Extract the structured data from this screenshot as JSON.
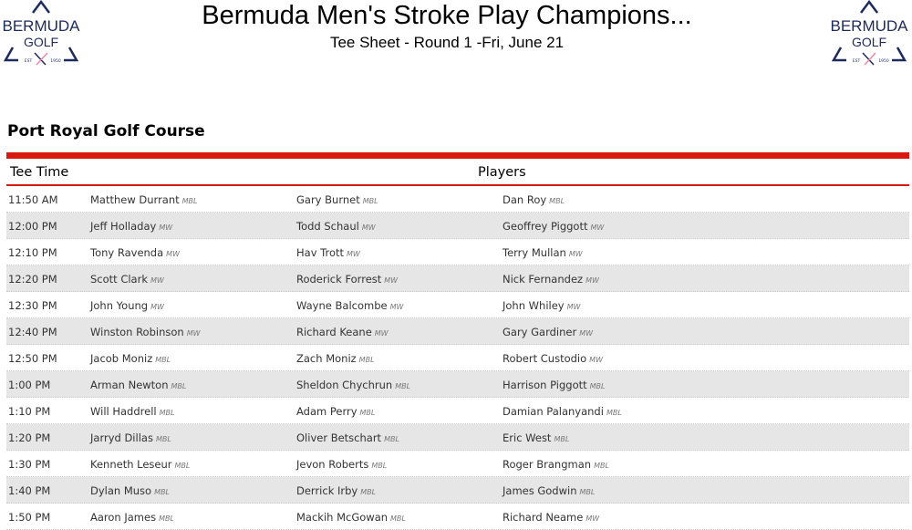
{
  "header": {
    "title": "Bermuda Men's Stroke Play Champions...",
    "subtitle": "Tee Sheet - Round 1 -Fri, June 21",
    "logo": {
      "line1": "BERMUDA",
      "line2": "GOLF",
      "est": "EST",
      "year": "1950"
    }
  },
  "colors": {
    "accent": "#d9190f",
    "logo_navy": "#1d2a5c",
    "logo_pink": "#e98aa8"
  },
  "course": "Port Royal Golf Course",
  "table": {
    "headers": [
      "Tee Time",
      "Players"
    ],
    "rows": [
      {
        "time": "11:50 AM",
        "players": [
          [
            "Matthew Durrant",
            "MBL"
          ],
          [
            "Gary Burnet",
            "MBL"
          ],
          [
            "Dan Roy",
            "MBL"
          ]
        ]
      },
      {
        "time": "12:00 PM",
        "players": [
          [
            "Jeff Holladay",
            "MW"
          ],
          [
            "Todd Schaul",
            "MW"
          ],
          [
            "Geoffrey Piggott",
            "MW"
          ]
        ]
      },
      {
        "time": "12:10 PM",
        "players": [
          [
            "Tony Ravenda",
            "MW"
          ],
          [
            "Hav Trott",
            "MW"
          ],
          [
            "Terry Mullan",
            "MW"
          ]
        ]
      },
      {
        "time": "12:20 PM",
        "players": [
          [
            "Scott Clark",
            "MW"
          ],
          [
            "Roderick Forrest",
            "MW"
          ],
          [
            "Nick Fernandez",
            "MW"
          ]
        ]
      },
      {
        "time": "12:30 PM",
        "players": [
          [
            "John Young",
            "MW"
          ],
          [
            "Wayne Balcombe",
            "MW"
          ],
          [
            "John Whiley",
            "MW"
          ]
        ]
      },
      {
        "time": "12:40 PM",
        "players": [
          [
            "Winston Robinson",
            "MW"
          ],
          [
            "Richard Keane",
            "MW"
          ],
          [
            "Gary Gardiner",
            "MW"
          ]
        ]
      },
      {
        "time": "12:50 PM",
        "players": [
          [
            "Jacob Moniz",
            "MBL"
          ],
          [
            "Zach Moniz",
            "MBL"
          ],
          [
            "Robert Custodio",
            "MW"
          ]
        ]
      },
      {
        "time": "1:00 PM",
        "players": [
          [
            "Arman Newton",
            "MBL"
          ],
          [
            "Sheldon Chychrun",
            "MBL"
          ],
          [
            "Harrison Piggott",
            "MBL"
          ]
        ]
      },
      {
        "time": "1:10 PM",
        "players": [
          [
            "Will Haddrell",
            "MBL"
          ],
          [
            "Adam Perry",
            "MBL"
          ],
          [
            "Damian Palanyandi",
            "MBL"
          ]
        ]
      },
      {
        "time": "1:20 PM",
        "players": [
          [
            "Jarryd Dillas",
            "MBL"
          ],
          [
            "Oliver Betschart",
            "MBL"
          ],
          [
            "Eric West",
            "MBL"
          ]
        ]
      },
      {
        "time": "1:30 PM",
        "players": [
          [
            "Kenneth Leseur",
            "MBL"
          ],
          [
            "Jevon Roberts",
            "MBL"
          ],
          [
            "Roger Brangman",
            "MBL"
          ]
        ]
      },
      {
        "time": "1:40 PM",
        "players": [
          [
            "Dylan Muso",
            "MBL"
          ],
          [
            "Derrick Irby",
            "MBL"
          ],
          [
            "James Godwin",
            "MBL"
          ]
        ]
      },
      {
        "time": "1:50 PM",
        "players": [
          [
            "Aaron James",
            "MBL"
          ],
          [
            "Mackih McGowan",
            "MBL"
          ],
          [
            "Richard Neame",
            "MW"
          ]
        ]
      }
    ]
  }
}
